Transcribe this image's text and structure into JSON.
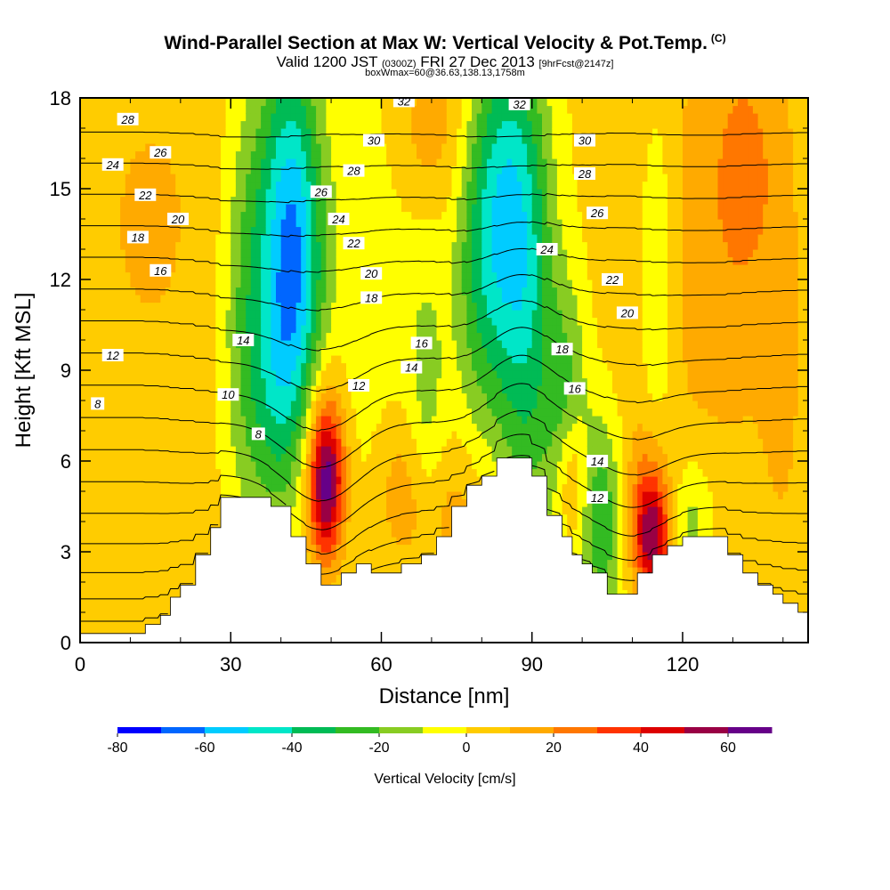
{
  "header": {
    "title_main": "Wind-Parallel Section at Max W: Vertical Velocity & Pot.Temp.",
    "title_copyright": "(C)",
    "subtitle_a": "Valid 1200 JST",
    "subtitle_b": "(0300Z)",
    "subtitle_c": "FRI 27 Dec 2013",
    "subtitle_d": "[9hrFcst@2147z]",
    "subtitle2": "boxWmax=60@36.63,138.13,1758m"
  },
  "chart_data": {
    "type": "heatmap",
    "xlabel": "Distance [nm]",
    "ylabel": "Height [Kft MSL]",
    "xlim": [
      0,
      145
    ],
    "ylim": [
      0,
      18
    ],
    "x_ticks": [
      0,
      30,
      60,
      90,
      120
    ],
    "y_ticks": [
      0,
      3,
      6,
      9,
      12,
      15,
      18
    ],
    "colorbar": {
      "label": "Vertical Velocity [cm/s]",
      "ticks": [
        -80,
        -60,
        -40,
        -20,
        0,
        20,
        40,
        60
      ],
      "bounds": [
        -80,
        -70,
        -60,
        -50,
        -40,
        -30,
        -20,
        -10,
        0,
        10,
        20,
        30,
        40,
        50,
        60,
        70
      ],
      "colors": [
        "#0000ff",
        "#0066ff",
        "#00ccff",
        "#00e6c8",
        "#00bb55",
        "#33bb22",
        "#88cc22",
        "#ffff00",
        "#ffcc00",
        "#ffaa00",
        "#ff7700",
        "#ff3300",
        "#dd0000",
        "#990044",
        "#660088"
      ]
    },
    "terrain_kft": [
      [
        0,
        0.3
      ],
      [
        13,
        0.3
      ],
      [
        13,
        0.6
      ],
      [
        16,
        0.6
      ],
      [
        16,
        0.9
      ],
      [
        18,
        0.9
      ],
      [
        18,
        1.5
      ],
      [
        20,
        1.5
      ],
      [
        20,
        1.9
      ],
      [
        23,
        1.9
      ],
      [
        23,
        2.9
      ],
      [
        26,
        2.9
      ],
      [
        26,
        3.8
      ],
      [
        28,
        3.8
      ],
      [
        28,
        4.8
      ],
      [
        38,
        4.8
      ],
      [
        38,
        4.5
      ],
      [
        42,
        4.5
      ],
      [
        42,
        3.5
      ],
      [
        45,
        3.5
      ],
      [
        45,
        2.6
      ],
      [
        48,
        2.6
      ],
      [
        48,
        1.9
      ],
      [
        52,
        1.9
      ],
      [
        52,
        2.3
      ],
      [
        55,
        2.3
      ],
      [
        55,
        2.6
      ],
      [
        58,
        2.6
      ],
      [
        58,
        2.3
      ],
      [
        64,
        2.3
      ],
      [
        64,
        2.6
      ],
      [
        68,
        2.6
      ],
      [
        68,
        2.9
      ],
      [
        71,
        2.9
      ],
      [
        71,
        3.5
      ],
      [
        74,
        3.5
      ],
      [
        74,
        4.5
      ],
      [
        77,
        4.5
      ],
      [
        77,
        5.2
      ],
      [
        80,
        5.2
      ],
      [
        80,
        5.5
      ],
      [
        83,
        5.5
      ],
      [
        83,
        6.1
      ],
      [
        90,
        6.1
      ],
      [
        90,
        5.5
      ],
      [
        93,
        5.5
      ],
      [
        93,
        4.2
      ],
      [
        96,
        4.2
      ],
      [
        96,
        3.5
      ],
      [
        98,
        3.5
      ],
      [
        98,
        2.9
      ],
      [
        100,
        2.9
      ],
      [
        100,
        2.6
      ],
      [
        102,
        2.6
      ],
      [
        102,
        2.3
      ],
      [
        105,
        2.3
      ],
      [
        105,
        1.6
      ],
      [
        111,
        1.6
      ],
      [
        111,
        2.3
      ],
      [
        114,
        2.3
      ],
      [
        114,
        2.9
      ],
      [
        117,
        2.9
      ],
      [
        117,
        3.2
      ],
      [
        120,
        3.2
      ],
      [
        120,
        3.5
      ],
      [
        129,
        3.5
      ],
      [
        129,
        2.9
      ],
      [
        132,
        2.9
      ],
      [
        132,
        2.3
      ],
      [
        135,
        2.3
      ],
      [
        135,
        1.9
      ],
      [
        138,
        1.9
      ],
      [
        138,
        1.6
      ],
      [
        140,
        1.6
      ],
      [
        140,
        1.3
      ],
      [
        143,
        1.3
      ],
      [
        143,
        1.0
      ],
      [
        145,
        1.0
      ]
    ],
    "w_features": [
      {
        "x": 58,
        "y": 12,
        "sx": 9,
        "sy": 7,
        "w": -8
      },
      {
        "x": 127,
        "y": 13,
        "sx": 12,
        "sy": 6,
        "w": 13
      },
      {
        "x": 14,
        "y": 14,
        "sx": 12,
        "sy": 5,
        "w": 9
      },
      {
        "x": 70,
        "y": 17,
        "sx": 6,
        "sy": 2,
        "w": 15
      },
      {
        "x": 133,
        "y": 16,
        "sx": 5,
        "sy": 3,
        "w": 12
      },
      {
        "x": 42,
        "y": 14.5,
        "sx": 4,
        "sy": 4,
        "w": -48
      },
      {
        "x": 44,
        "y": 11,
        "sx": 4,
        "sy": 3,
        "w": -20
      },
      {
        "x": 34,
        "y": 11,
        "sx": 4,
        "sy": 5,
        "w": -28
      },
      {
        "x": 40,
        "y": 8,
        "sx": 3.5,
        "sy": 3,
        "w": -22
      },
      {
        "x": 85,
        "y": 15,
        "sx": 5,
        "sy": 4,
        "w": -38
      },
      {
        "x": 89,
        "y": 10,
        "sx": 4,
        "sy": 5,
        "w": -30
      },
      {
        "x": 80,
        "y": 12,
        "sx": 4,
        "sy": 4,
        "w": -22
      },
      {
        "x": 104,
        "y": 4,
        "sx": 3,
        "sy": 2.5,
        "w": -30
      },
      {
        "x": 97,
        "y": 8,
        "sx": 3,
        "sy": 3,
        "w": -22
      },
      {
        "x": 115,
        "y": 12,
        "sx": 2.5,
        "sy": 4,
        "w": -18
      },
      {
        "x": 69,
        "y": 8,
        "sx": 2.5,
        "sy": 3,
        "w": -15
      },
      {
        "x": 122,
        "y": 4,
        "sx": 3,
        "sy": 1.5,
        "w": -18
      },
      {
        "x": 140,
        "y": 7,
        "sx": 3,
        "sy": 4,
        "w": 6
      },
      {
        "x": 49,
        "y": 5.3,
        "sx": 2.5,
        "sy": 1.8,
        "w": 55
      },
      {
        "x": 49,
        "y": 6.5,
        "sx": 3,
        "sy": 2.5,
        "w": 15
      },
      {
        "x": 114,
        "y": 3.5,
        "sx": 2.5,
        "sy": 1.5,
        "w": 50
      },
      {
        "x": 112,
        "y": 5,
        "sx": 3,
        "sy": 2,
        "w": 12
      },
      {
        "x": 98,
        "y": 5.5,
        "sx": 2,
        "sy": 1.5,
        "w": 22
      },
      {
        "x": 64,
        "y": 5,
        "sx": 4,
        "sy": 2,
        "w": 16
      },
      {
        "x": 75,
        "y": 4,
        "sx": 5,
        "sy": 2,
        "w": 13
      },
      {
        "x": 10,
        "y": 4,
        "sx": 10,
        "sy": 3,
        "w": 6
      }
    ],
    "theta_levels": [
      2,
      4,
      6,
      8,
      10,
      12,
      14,
      16,
      18,
      20,
      22,
      24,
      26,
      28,
      30,
      32,
      34
    ],
    "theta_labels": [
      {
        "x": 9.5,
        "y": 17.3,
        "text": "28"
      },
      {
        "x": 16,
        "y": 16.2,
        "text": "26"
      },
      {
        "x": 6.5,
        "y": 15.8,
        "text": "24"
      },
      {
        "x": 13,
        "y": 14.8,
        "text": "22"
      },
      {
        "x": 19.5,
        "y": 14.0,
        "text": "20"
      },
      {
        "x": 11.5,
        "y": 13.4,
        "text": "18"
      },
      {
        "x": 16,
        "y": 12.3,
        "text": "16"
      },
      {
        "x": 6.5,
        "y": 9.5,
        "text": "12"
      },
      {
        "x": 3.5,
        "y": 7.9,
        "text": "8"
      },
      {
        "x": 32.5,
        "y": 10.0,
        "text": "14"
      },
      {
        "x": 29.5,
        "y": 8.2,
        "text": "10"
      },
      {
        "x": 35.5,
        "y": 6.9,
        "text": "8"
      },
      {
        "x": 64.5,
        "y": 17.9,
        "text": "32"
      },
      {
        "x": 58.5,
        "y": 16.6,
        "text": "30"
      },
      {
        "x": 54.5,
        "y": 15.6,
        "text": "28"
      },
      {
        "x": 48,
        "y": 14.9,
        "text": "26"
      },
      {
        "x": 51.5,
        "y": 14.0,
        "text": "24"
      },
      {
        "x": 54.5,
        "y": 13.2,
        "text": "22"
      },
      {
        "x": 58,
        "y": 12.2,
        "text": "20"
      },
      {
        "x": 58,
        "y": 11.4,
        "text": "18"
      },
      {
        "x": 68,
        "y": 9.9,
        "text": "16"
      },
      {
        "x": 66,
        "y": 9.1,
        "text": "14"
      },
      {
        "x": 55.5,
        "y": 8.5,
        "text": "12"
      },
      {
        "x": 87.5,
        "y": 17.8,
        "text": "32"
      },
      {
        "x": 100.5,
        "y": 16.6,
        "text": "30"
      },
      {
        "x": 100.5,
        "y": 15.5,
        "text": "28"
      },
      {
        "x": 103,
        "y": 14.2,
        "text": "26"
      },
      {
        "x": 93,
        "y": 13.0,
        "text": "24"
      },
      {
        "x": 106,
        "y": 12.0,
        "text": "22"
      },
      {
        "x": 109,
        "y": 10.9,
        "text": "20"
      },
      {
        "x": 96,
        "y": 9.7,
        "text": "18"
      },
      {
        "x": 98.5,
        "y": 8.4,
        "text": "16"
      },
      {
        "x": 103,
        "y": 6.0,
        "text": "14"
      },
      {
        "x": 103,
        "y": 4.8,
        "text": "12"
      }
    ]
  }
}
